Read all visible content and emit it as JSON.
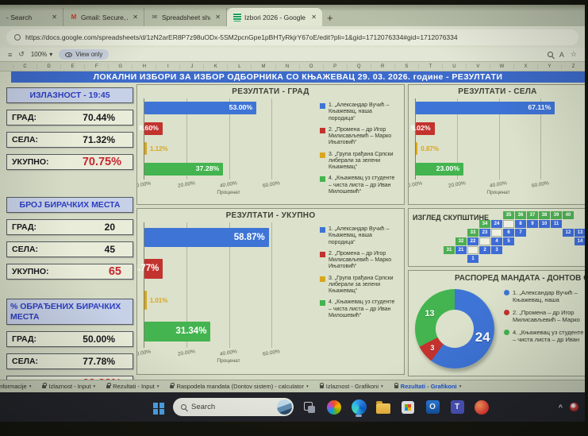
{
  "browser": {
    "tabs": [
      {
        "title": "- Search",
        "favicon": "",
        "active": false
      },
      {
        "title": "Gmail: Secure, AI-Powered Email |",
        "favicon": "gmail",
        "active": false
      },
      {
        "title": "Spreadsheet shared with you: “Izl",
        "favicon": "mail",
        "active": false
      },
      {
        "title": "Izbori 2026 - Google Sheets",
        "favicon": "sheets",
        "active": true
      }
    ],
    "url": "https://docs.google.com/spreadsheets/d/1zN2arER8P7z98uODx-5SM2pcnGpe1pBHTyRkjrY67oE/edit?pli=1&gid=1712076334#gid=1712076334"
  },
  "glyphs": {
    "close": "✕",
    "new_tab": "+",
    "dropdown": "▾",
    "star": "☆",
    "read_aloud": "A",
    "menu": "≡",
    "undo": "↺",
    "chevron_up": "^"
  },
  "toolbar": {
    "zoom_level": "100%",
    "view_only": "View only"
  },
  "columns": [
    "C",
    "D",
    "E",
    "F",
    "G",
    "H",
    "I",
    "J",
    "K",
    "L",
    "M",
    "N",
    "O",
    "P",
    "Q",
    "R",
    "S",
    "T",
    "U",
    "V",
    "W",
    "X",
    "Y",
    "Z"
  ],
  "sheet_title": "ЛОКАЛНИ ИЗБОРИ ЗА ИЗБОР ОДБОРНИКА СО КЊАЖЕВАЦ  29. 03. 2026. године - РЕЗУЛТАТИ",
  "stats_sections": [
    {
      "title": "ИЗЛАЗНОСТ - 19:45",
      "align": "center",
      "rows": [
        {
          "label": "ГРАД:",
          "value": "70.44%",
          "highlight": false
        },
        {
          "label": "СЕЛА:",
          "value": "71.32%",
          "highlight": false
        },
        {
          "label": "УКУПНО:",
          "value": "70.75%",
          "highlight": true
        }
      ]
    },
    {
      "title": "БРОЈ БИРАЧКИХ МЕСТА",
      "align": "center",
      "rows": [
        {
          "label": "ГРАД:",
          "value": "20",
          "highlight": false
        },
        {
          "label": "СЕЛА:",
          "value": "45",
          "highlight": false
        },
        {
          "label": "УКУПНО:",
          "value": "65",
          "highlight": true
        }
      ]
    },
    {
      "title": "% ОБРАЂЕНИХ БИРАЧКИХ МЕСТА",
      "align": "left",
      "rows": [
        {
          "label": "ГРАД:",
          "value": "50.00%",
          "highlight": false
        },
        {
          "label": "СЕЛА:",
          "value": "77.78%",
          "highlight": false
        },
        {
          "label": "УКУПНО:",
          "value": "69.23%",
          "highlight": true
        }
      ]
    }
  ],
  "parties": [
    "1. „Александар Вучић – Књажевац, наша породица“",
    "2. „Промена – др Игор Милисављевић – Марко Ињатовић“",
    "3. „Група грађана Српски либерали за зелени Књажевац“",
    "4. „Књажевац уз студенте – чиста листа – др Иван Милошевић“"
  ],
  "colors": {
    "title_bar": "#3d6bcb",
    "party": [
      "#3e74d6",
      "#c3322e",
      "#d9a61f",
      "#43b44f"
    ],
    "value_red": "#c62531",
    "header_blue": "#2c3dc2"
  },
  "chart_data": [
    {
      "id": "grad",
      "type": "bar",
      "title": "РЕЗУЛТАТИ - ГРАД",
      "values": [
        53.0,
        8.6,
        1.12,
        37.28
      ],
      "value_labels": [
        "53.00%",
        "8.60%",
        "1.12%",
        "37.28%"
      ],
      "xlim": [
        0,
        80
      ],
      "xtick_values": [
        0,
        20,
        40,
        60
      ],
      "xticks": [
        "0.00%",
        "20.00%",
        "40.00%",
        "60.00%"
      ],
      "xlabel": "Проценат",
      "legend": true
    },
    {
      "id": "sela",
      "type": "bar",
      "title": "РЕЗУЛТАТИ - СЕЛА",
      "values": [
        67.11,
        9.02,
        0.87,
        23.0
      ],
      "value_labels": [
        "67.11%",
        "9.02%",
        "0.87%",
        "23.00%"
      ],
      "xlim": [
        0,
        80
      ],
      "xtick_values": [
        0,
        20,
        40,
        60
      ],
      "xticks": [
        "0.00%",
        "20.00%",
        "40.00%",
        "60.00%"
      ],
      "xlabel": "Проценат",
      "legend": false
    },
    {
      "id": "ukupno",
      "type": "bar",
      "title": "РЕЗУЛТАТИ - УКУПНО",
      "values": [
        58.87,
        8.77,
        1.01,
        31.34
      ],
      "value_labels": [
        "58.87%",
        "8.77%",
        "1.01%",
        "31.34%"
      ],
      "xlim": [
        0,
        80
      ],
      "xtick_values": [
        0,
        20,
        40,
        60
      ],
      "xticks": [
        "0.00%",
        "20.00%",
        "40.00%",
        "60.00%"
      ],
      "xlabel": "Проценат",
      "legend": true
    },
    {
      "id": "seatmap",
      "type": "seat-grid",
      "title": "ИЗГЛЕД СКУПШТИНЕ",
      "rows": [
        [
          {
            "c": 7,
            "n": "35",
            "k": "g"
          },
          {
            "c": 8,
            "n": "36",
            "k": "g"
          },
          {
            "c": 9,
            "n": "37",
            "k": "g"
          },
          {
            "c": 10,
            "n": "38",
            "k": "g"
          },
          {
            "c": 11,
            "n": "39",
            "k": "g"
          },
          {
            "c": 12,
            "n": "40",
            "k": "g"
          }
        ],
        [
          {
            "c": 5,
            "n": "34",
            "k": "g"
          },
          {
            "c": 6,
            "n": "24",
            "k": "b"
          },
          {
            "c": 7,
            "n": "",
            "k": "w"
          },
          {
            "c": 8,
            "n": "8",
            "k": "b"
          },
          {
            "c": 9,
            "n": "9",
            "k": "b"
          },
          {
            "c": 10,
            "n": "10",
            "k": "b"
          },
          {
            "c": 11,
            "n": "11",
            "k": "b"
          }
        ],
        [
          {
            "c": 4,
            "n": "33",
            "k": "g"
          },
          {
            "c": 5,
            "n": "23",
            "k": "b"
          },
          {
            "c": 6,
            "n": "",
            "k": "w"
          },
          {
            "c": 7,
            "n": "6",
            "k": "b"
          },
          {
            "c": 8,
            "n": "7",
            "k": "b"
          },
          {
            "c": 12,
            "n": "12",
            "k": "b"
          },
          {
            "c": 13,
            "n": "13",
            "k": "b"
          }
        ],
        [
          {
            "c": 3,
            "n": "32",
            "k": "g"
          },
          {
            "c": 4,
            "n": "22",
            "k": "b"
          },
          {
            "c": 5,
            "n": "",
            "k": "w"
          },
          {
            "c": 6,
            "n": "4",
            "k": "b"
          },
          {
            "c": 7,
            "n": "5",
            "k": "b"
          },
          {
            "c": 13,
            "n": "14",
            "k": "b"
          }
        ],
        [
          {
            "c": 2,
            "n": "31",
            "k": "g"
          },
          {
            "c": 3,
            "n": "21",
            "k": "b"
          },
          {
            "c": 4,
            "n": "",
            "k": "w"
          },
          {
            "c": 5,
            "n": "2",
            "k": "b"
          },
          {
            "c": 6,
            "n": "3",
            "k": "b"
          }
        ],
        [
          {
            "c": 4,
            "n": "1",
            "k": "b"
          }
        ]
      ]
    },
    {
      "id": "mandates",
      "type": "donut",
      "title": "РАСПОРЕД МАНДАТА - ДОНТОВ СИСТЕМ",
      "slices": [
        {
          "label": "24",
          "value": 24,
          "color": "#3e74d6",
          "party_index": 0
        },
        {
          "label": "3",
          "value": 3,
          "color": "#c3322e",
          "party_index": 1
        },
        {
          "label": "13",
          "value": 13,
          "color": "#43b44f",
          "party_index": 3
        }
      ],
      "legend_party_indexes": [
        0,
        1,
        3
      ]
    }
  ],
  "sheet_tabs": [
    {
      "label": "Informacije",
      "active": false
    },
    {
      "label": "Izlaznost - Input",
      "active": false
    },
    {
      "label": "Rezultati - Input",
      "active": false
    },
    {
      "label": "Raspodela mandata (Dontov sistem) - calculator",
      "active": false
    },
    {
      "label": "Izlaznost - Grafikoni",
      "active": false
    },
    {
      "label": "Rezultati - Grafikoni",
      "active": true
    }
  ],
  "taskbar": {
    "search_placeholder": "Search",
    "icons": [
      {
        "name": "start"
      },
      {
        "name": "task-view"
      },
      {
        "name": "copilot"
      },
      {
        "name": "edge",
        "open": true
      },
      {
        "name": "file-explorer"
      },
      {
        "name": "store"
      },
      {
        "name": "outlook"
      },
      {
        "name": "teams"
      },
      {
        "name": "browser-app"
      }
    ],
    "tray": [
      "chevron-up",
      "notification"
    ]
  }
}
